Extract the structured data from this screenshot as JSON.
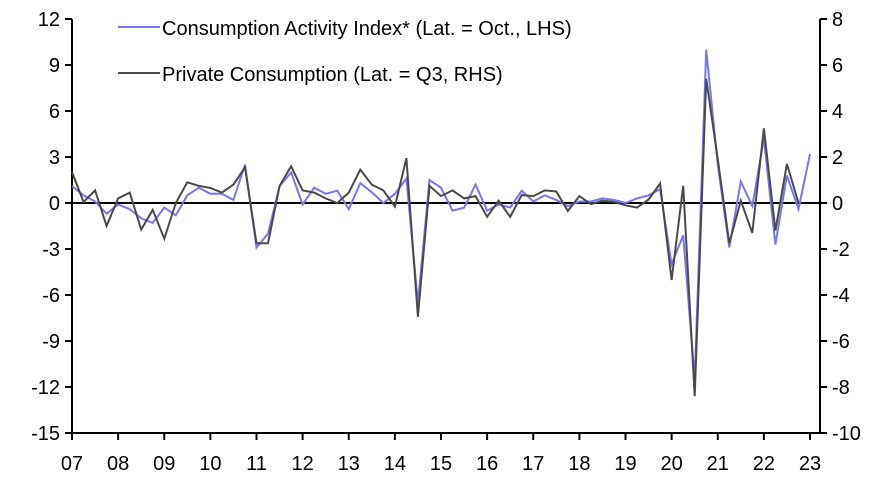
{
  "chart_data": {
    "type": "line",
    "title": "",
    "xlabel": "",
    "ylabel_left": "",
    "ylabel_right": "",
    "x_tick_labels": [
      "07",
      "08",
      "09",
      "10",
      "11",
      "12",
      "13",
      "14",
      "15",
      "16",
      "17",
      "18",
      "19",
      "20",
      "21",
      "22",
      "23"
    ],
    "x_range_years": [
      2007,
      2023.25
    ],
    "y_left": {
      "range": [
        -15,
        12
      ],
      "ticks": [
        "12",
        "9",
        "6",
        "3",
        "0",
        "-3",
        "-6",
        "-9",
        "-12",
        "-15"
      ],
      "tick_values": [
        12,
        9,
        6,
        3,
        0,
        -3,
        -6,
        -9,
        -12,
        -15
      ]
    },
    "y_right": {
      "range": [
        -10,
        8
      ],
      "ticks": [
        "8",
        "6",
        "4",
        "2",
        "0",
        "-2",
        "-4",
        "-6",
        "-8",
        "-10"
      ],
      "tick_values": [
        8,
        6,
        4,
        2,
        0,
        -2,
        -4,
        -6,
        -8,
        -10
      ]
    },
    "legend_position": "top-left",
    "grid": false,
    "series": [
      {
        "name": "Consumption Activity Index* (Lat. = Oct., LHS)",
        "axis": "left",
        "color": "#7777ee",
        "start_year": 2007.0,
        "step_years": 0.25,
        "values": [
          1.1,
          0.5,
          0.1,
          -0.7,
          -0.1,
          -0.4,
          -1.0,
          -1.3,
          -0.3,
          -0.8,
          0.5,
          1.0,
          0.6,
          0.6,
          0.2,
          2.5,
          -2.9,
          -2.0,
          1.1,
          2.0,
          -0.1,
          1.0,
          0.6,
          0.8,
          -0.4,
          1.3,
          0.7,
          0.0,
          0.6,
          1.6,
          -6.5,
          1.5,
          1.0,
          -0.5,
          -0.3,
          1.2,
          -0.5,
          -0.1,
          -0.3,
          0.8,
          0.1,
          0.5,
          0.2,
          -0.2,
          0.1,
          0.1,
          0.3,
          0.2,
          0.0,
          0.3,
          0.5,
          0.9,
          -4.0,
          -2.1,
          -11.5,
          10.0,
          2.5,
          -2.9,
          1.4,
          -0.2,
          4.2,
          -2.7,
          1.8,
          -0.4,
          3.2
        ]
      },
      {
        "name": "Private Consumption (Lat. = Q3, RHS)",
        "axis": "right",
        "color": "#4a4a4a",
        "start_year": 2007.0,
        "step_years": 0.25,
        "values": [
          1.35,
          0.05,
          0.55,
          -1.0,
          0.2,
          0.45,
          -1.15,
          -0.3,
          -1.55,
          0.0,
          0.9,
          0.75,
          0.65,
          0.45,
          0.8,
          1.55,
          -1.75,
          -1.75,
          0.75,
          1.6,
          0.55,
          0.45,
          0.2,
          0.0,
          0.45,
          1.45,
          0.8,
          0.55,
          -0.15,
          1.95,
          -4.95,
          0.75,
          0.3,
          0.55,
          0.2,
          0.3,
          -0.6,
          0.1,
          -0.6,
          0.35,
          0.3,
          0.55,
          0.5,
          -0.35,
          0.3,
          -0.05,
          0.1,
          0.05,
          -0.1,
          -0.2,
          0.15,
          0.85,
          -3.35,
          0.75,
          -8.4,
          5.4,
          1.9,
          -1.75,
          0.1,
          -1.3,
          3.25,
          -1.2,
          1.7,
          0.0
        ]
      }
    ]
  }
}
